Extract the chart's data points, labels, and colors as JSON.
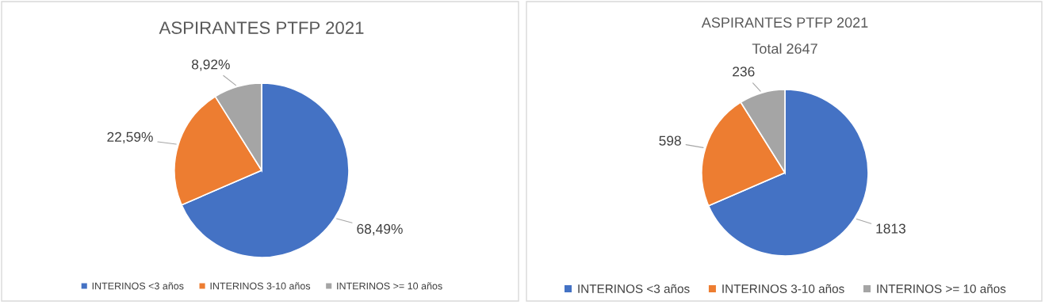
{
  "chart_data": [
    {
      "type": "pie",
      "title": "ASPIRANTES PTFP 2021",
      "categories": [
        "INTERINOS <3 años",
        "INTERINOS 3-10 años",
        "INTERINOS >= 10 años"
      ],
      "values": [
        68.49,
        22.59,
        8.92
      ],
      "colors": [
        "#4472c4",
        "#ed7d31",
        "#a5a5a5"
      ],
      "value_labels": [
        "68,49%",
        "22,59%",
        "8,92%"
      ],
      "legend": "bottom"
    },
    {
      "type": "pie",
      "title": "ASPIRANTES PTFP 2021",
      "subtitle": "Total 2647",
      "categories": [
        "INTERINOS <3 años",
        "INTERINOS 3-10 años",
        "INTERINOS >= 10 años"
      ],
      "values": [
        1813,
        598,
        236
      ],
      "colors": [
        "#4472c4",
        "#ed7d31",
        "#a5a5a5"
      ],
      "data_labels": true,
      "legend": "bottom"
    }
  ]
}
